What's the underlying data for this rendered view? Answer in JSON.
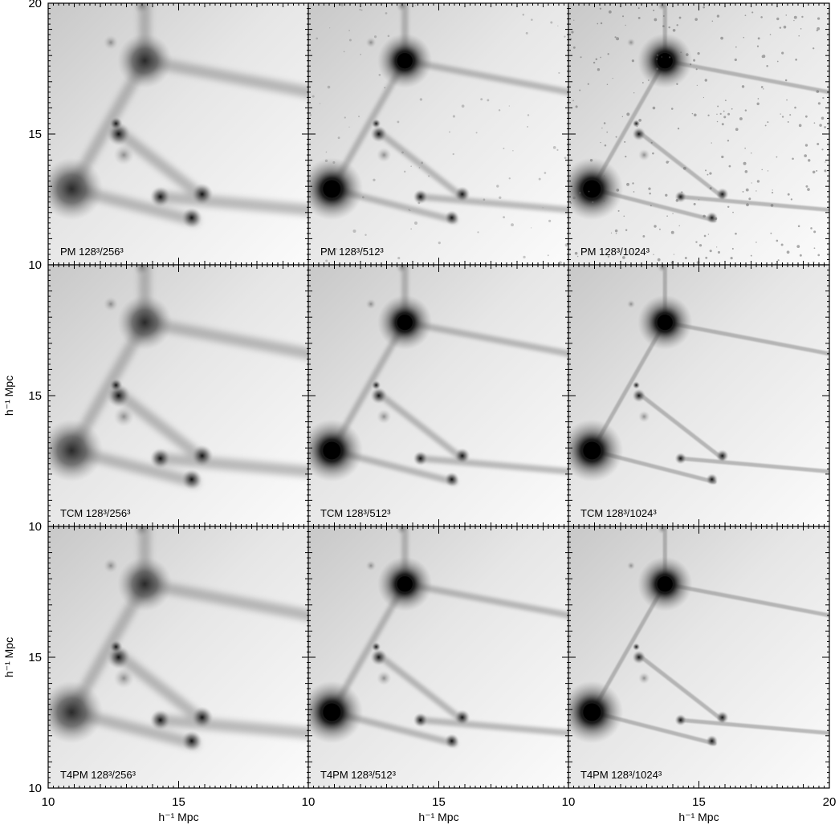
{
  "figure": {
    "x_axis_label": "h⁻¹ Mpc",
    "y_axis_label": "h⁻¹ Mpc",
    "x_range": [
      10,
      20
    ],
    "y_range": [
      10,
      20
    ],
    "x_tick_labels": [
      "10",
      "15",
      "20"
    ],
    "y_tick_labels": [
      "10",
      "15",
      "20"
    ],
    "colors": {
      "background": "#ffffff",
      "ink": "#000000",
      "frame": "#000000"
    }
  },
  "panels": [
    {
      "id": "pm-256",
      "method": "PM",
      "resolution": "128³/256³",
      "label": "PM 128³/256³"
    },
    {
      "id": "pm-512",
      "method": "PM",
      "resolution": "128³/512³",
      "label": "PM 128³/512³"
    },
    {
      "id": "pm-1024",
      "method": "PM",
      "resolution": "128³/1024³",
      "label": "PM 128³/1024³"
    },
    {
      "id": "tcm-256",
      "method": "TCM",
      "resolution": "128³/256³",
      "label": "TCM 128³/256³"
    },
    {
      "id": "tcm-512",
      "method": "TCM",
      "resolution": "128³/512³",
      "label": "TCM 128³/512³"
    },
    {
      "id": "tcm-1024",
      "method": "TCM",
      "resolution": "128³/1024³",
      "label": "TCM 128³/1024³"
    },
    {
      "id": "t4pm-256",
      "method": "T4PM",
      "resolution": "128³/256³",
      "label": "T4PM 128³/256³"
    },
    {
      "id": "t4pm-512",
      "method": "T4PM",
      "resolution": "128³/512³",
      "label": "T4PM 128³/512³"
    },
    {
      "id": "t4pm-1024",
      "method": "T4PM",
      "resolution": "128³/1024³",
      "label": "T4PM 128³/1024³"
    }
  ]
}
